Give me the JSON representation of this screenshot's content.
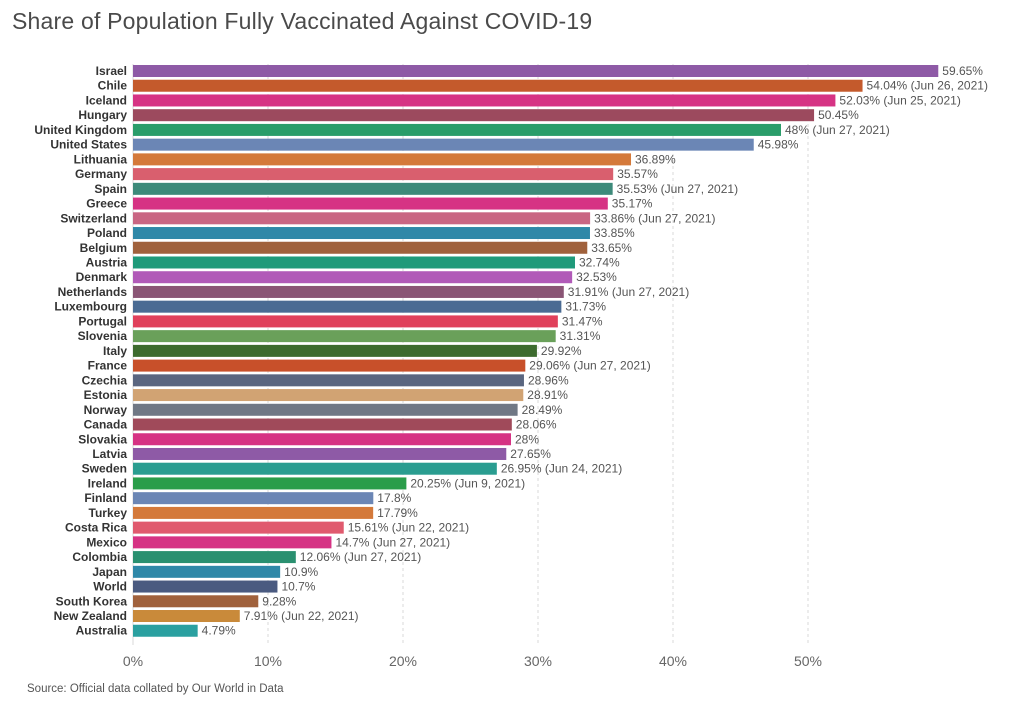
{
  "chart_data": {
    "type": "bar",
    "orientation": "horizontal",
    "title": "Share of Population Fully Vaccinated Against COVID-19",
    "source": "Source: Official data collated by Our World in Data",
    "xlim": [
      0,
      60
    ],
    "ticks": [
      0,
      10,
      20,
      30,
      40,
      50
    ],
    "tick_labels": [
      "0%",
      "10%",
      "20%",
      "30%",
      "40%",
      "50%"
    ],
    "grid": true,
    "bars": [
      {
        "name": "Israel",
        "value": 59.65,
        "label": "59.65%",
        "color": "#8e5aa6"
      },
      {
        "name": "Chile",
        "value": 54.04,
        "label": "54.04% (Jun 26, 2021)",
        "color": "#c45a2c"
      },
      {
        "name": "Iceland",
        "value": 52.03,
        "label": "52.03% (Jun 25, 2021)",
        "color": "#d63384"
      },
      {
        "name": "Hungary",
        "value": 50.45,
        "label": "50.45%",
        "color": "#9c4a5e"
      },
      {
        "name": "United Kingdom",
        "value": 48,
        "label": "48% (Jun 27, 2021)",
        "color": "#2a9d6a"
      },
      {
        "name": "United States",
        "value": 45.98,
        "label": "45.98%",
        "color": "#6b86b5"
      },
      {
        "name": "Lithuania",
        "value": 36.89,
        "label": "36.89%",
        "color": "#d4793a"
      },
      {
        "name": "Germany",
        "value": 35.57,
        "label": "35.57%",
        "color": "#d95f6e"
      },
      {
        "name": "Spain",
        "value": 35.53,
        "label": "35.53% (Jun 27, 2021)",
        "color": "#3d8a7a"
      },
      {
        "name": "Greece",
        "value": 35.17,
        "label": "35.17%",
        "color": "#d63384"
      },
      {
        "name": "Switzerland",
        "value": 33.86,
        "label": "33.86% (Jun 27, 2021)",
        "color": "#c96683"
      },
      {
        "name": "Poland",
        "value": 33.85,
        "label": "33.85%",
        "color": "#2f88a8"
      },
      {
        "name": "Belgium",
        "value": 33.65,
        "label": "33.65%",
        "color": "#a0613c"
      },
      {
        "name": "Austria",
        "value": 32.74,
        "label": "32.74%",
        "color": "#1f9a7a"
      },
      {
        "name": "Denmark",
        "value": 32.53,
        "label": "32.53%",
        "color": "#b15ab8"
      },
      {
        "name": "Netherlands",
        "value": 31.91,
        "label": "31.91% (Jun 27, 2021)",
        "color": "#8a5575"
      },
      {
        "name": "Luxembourg",
        "value": 31.73,
        "label": "31.73%",
        "color": "#4a6b93"
      },
      {
        "name": "Portugal",
        "value": 31.47,
        "label": "31.47%",
        "color": "#e0405b"
      },
      {
        "name": "Slovenia",
        "value": 31.31,
        "label": "31.31%",
        "color": "#6aa05a"
      },
      {
        "name": "Italy",
        "value": 29.92,
        "label": "29.92%",
        "color": "#3d6b2e"
      },
      {
        "name": "France",
        "value": 29.06,
        "label": "29.06% (Jun 27, 2021)",
        "color": "#c8502a"
      },
      {
        "name": "Czechia",
        "value": 28.96,
        "label": "28.96%",
        "color": "#5a6680"
      },
      {
        "name": "Estonia",
        "value": 28.91,
        "label": "28.91%",
        "color": "#d1a373"
      },
      {
        "name": "Norway",
        "value": 28.49,
        "label": "28.49%",
        "color": "#707885"
      },
      {
        "name": "Canada",
        "value": 28.06,
        "label": "28.06%",
        "color": "#a04a5a"
      },
      {
        "name": "Slovakia",
        "value": 28,
        "label": "28%",
        "color": "#d63384"
      },
      {
        "name": "Latvia",
        "value": 27.65,
        "label": "27.65%",
        "color": "#8e5aa6"
      },
      {
        "name": "Sweden",
        "value": 26.95,
        "label": "26.95% (Jun 24, 2021)",
        "color": "#2a9d90"
      },
      {
        "name": "Ireland",
        "value": 20.25,
        "label": "20.25% (Jun 9, 2021)",
        "color": "#2a9d4a"
      },
      {
        "name": "Finland",
        "value": 17.8,
        "label": "17.8%",
        "color": "#6b86b5"
      },
      {
        "name": "Turkey",
        "value": 17.79,
        "label": "17.79%",
        "color": "#d4793a"
      },
      {
        "name": "Costa Rica",
        "value": 15.61,
        "label": "15.61% (Jun 22, 2021)",
        "color": "#e05a6e"
      },
      {
        "name": "Mexico",
        "value": 14.7,
        "label": "14.7% (Jun 27, 2021)",
        "color": "#d63384"
      },
      {
        "name": "Colombia",
        "value": 12.06,
        "label": "12.06% (Jun 27, 2021)",
        "color": "#2a9070"
      },
      {
        "name": "Japan",
        "value": 10.9,
        "label": "10.9%",
        "color": "#2f88a8"
      },
      {
        "name": "World",
        "value": 10.7,
        "label": "10.7%",
        "color": "#4a5a80"
      },
      {
        "name": "South Korea",
        "value": 9.28,
        "label": "9.28%",
        "color": "#a0613c"
      },
      {
        "name": "New Zealand",
        "value": 7.91,
        "label": "7.91% (Jun 22, 2021)",
        "color": "#c98a3a"
      },
      {
        "name": "Australia",
        "value": 4.79,
        "label": "4.79%",
        "color": "#2aa0a0"
      }
    ]
  }
}
